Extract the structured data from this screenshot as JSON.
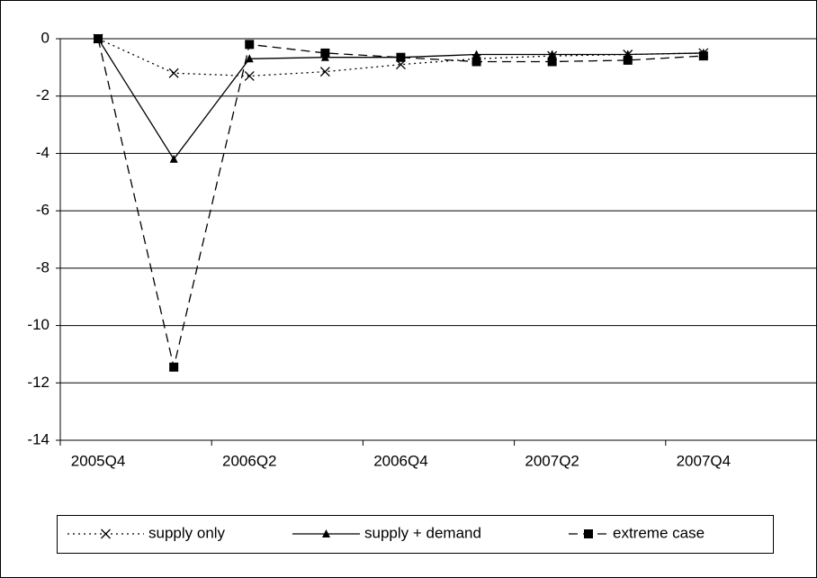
{
  "chart_data": {
    "type": "line",
    "categories": [
      "2005Q4",
      null,
      "2006Q2",
      null,
      "2006Q4",
      null,
      "2007Q2",
      null,
      "2007Q4",
      null
    ],
    "series": [
      {
        "name": "supply only",
        "color": "#000000",
        "marker": "x",
        "line_style": "dotted",
        "values": [
          0,
          -1.2,
          -1.3,
          -1.15,
          -0.9,
          -0.7,
          -0.6,
          -0.55,
          -0.5,
          null
        ]
      },
      {
        "name": "supply + demand",
        "color": "#000000",
        "marker": "triangle",
        "line_style": "solid",
        "values": [
          0,
          -4.2,
          -0.7,
          -0.65,
          -0.65,
          -0.55,
          -0.55,
          -0.55,
          -0.5,
          null
        ]
      },
      {
        "name": "extreme case",
        "color": "#000000",
        "marker": "square",
        "line_style": "dashed",
        "values": [
          0,
          -11.45,
          -0.2,
          -0.5,
          -0.65,
          -0.8,
          -0.8,
          -0.75,
          -0.6,
          null
        ]
      }
    ],
    "ylim": [
      -14,
      0
    ],
    "yticks": [
      0,
      -2,
      -4,
      -6,
      -8,
      -10,
      -12,
      -14
    ],
    "grid": true,
    "legend": "bottom"
  }
}
